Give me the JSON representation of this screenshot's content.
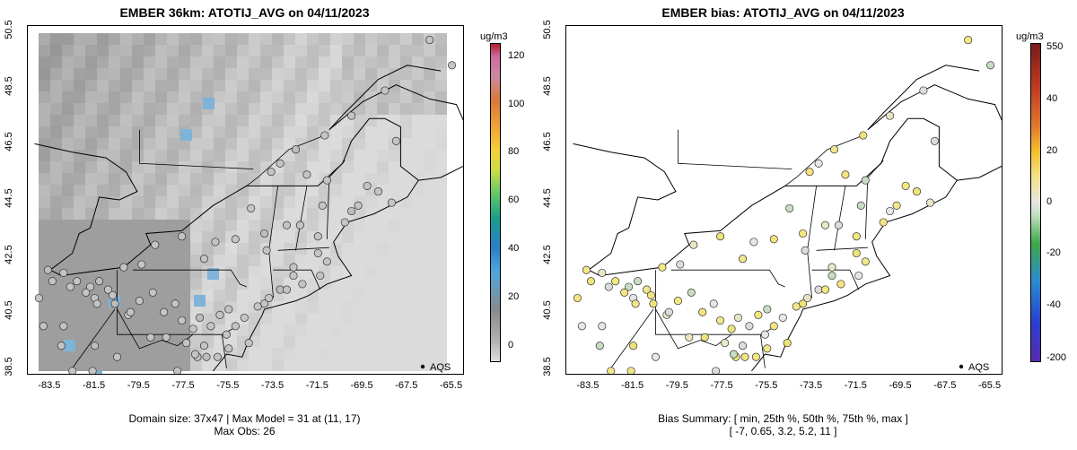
{
  "left_panel": {
    "title": "EMBER 36km: ATOTIJ_AVG on 04/11/2023",
    "colorbar_unit": "ug/m3",
    "colorbar_ticks": [
      "0",
      "20",
      "40",
      "60",
      "80",
      "100",
      "120"
    ],
    "legend_label": "AQS",
    "footer_line1": "Domain size: 37x47 | Max Model = 31 at (11, 17)",
    "footer_line2": "Max Obs: 26"
  },
  "right_panel": {
    "title": "EMBER bias: ATOTIJ_AVG on 04/11/2023",
    "colorbar_unit": "ug/m3",
    "colorbar_ticks": [
      "550",
      "40",
      "20",
      "0",
      "-20",
      "-40",
      "-200"
    ],
    "legend_label": "AQS",
    "footer_line1": "Bias Summary: [ min, 25th %, 50th %, 75th %, max ]",
    "footer_line2": "[ -7,   0.65,   3.2,   5.2,   11 ]"
  },
  "axes": {
    "x_ticks": [
      "-83.5",
      "-81.5",
      "-79.5",
      "-77.5",
      "-75.5",
      "-73.5",
      "-71.5",
      "-69.5",
      "-67.5",
      "-65.5"
    ],
    "y_ticks": [
      "38.5",
      "40.5",
      "42.5",
      "44.5",
      "46.5",
      "48.5",
      "50.5"
    ],
    "xlim": [
      -84.5,
      -65
    ],
    "ylim": [
      38.3,
      50.7
    ]
  },
  "colors": {
    "colorbar_left": [
      "#dedede",
      "#b4b4b4",
      "#8a8a8a",
      "#4fa6dd",
      "#2a7fc6",
      "#1a9e8a",
      "#59c36a",
      "#c9dd4a",
      "#f2d23a",
      "#f0a23a",
      "#d97a3a",
      "#c98aa0",
      "#d06ba0",
      "#b02030"
    ],
    "colorbar_right": [
      "#7a1b1b",
      "#c23b22",
      "#e07a2e",
      "#f2c230",
      "#f3e28a",
      "#e6e6e6",
      "#bfe0bf",
      "#3fa64a",
      "#2a8ad0",
      "#2a3fcf",
      "#5a2ab0"
    ],
    "aqs_point": "#000000"
  }
}
